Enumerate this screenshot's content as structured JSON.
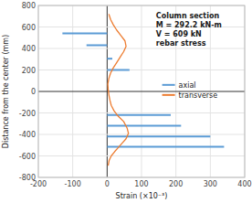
{
  "chart_data": {
    "type": "bar",
    "orientation": "horizontal",
    "xlabel": "Strain (×10⁻³)",
    "ylabel": "Distance from the center (mm)",
    "annotation": [
      "Column section",
      "M = 292.2 kN-m",
      "V = 609 kN",
      "rebar stress"
    ],
    "xlim": [
      -200,
      400
    ],
    "ylim": [
      -800,
      800
    ],
    "xticks": [
      -200,
      -100,
      0,
      100,
      200,
      300,
      400
    ],
    "yticks": [
      -800,
      -600,
      -400,
      -200,
      0,
      200,
      400,
      600,
      800
    ],
    "grid": true,
    "legend": "right",
    "series": [
      {
        "name": "axial",
        "type": "bar",
        "color": "#5b9bd5",
        "y": [
          540,
          430,
          305,
          200,
          0,
          -220,
          -320,
          -420,
          -515
        ],
        "values": [
          -130,
          -60,
          15,
          65,
          0,
          185,
          215,
          300,
          340
        ]
      },
      {
        "name": "transverse",
        "type": "line",
        "color": "#ed7d31",
        "y": [
          720,
          670,
          620,
          570,
          520,
          470,
          420,
          370,
          320,
          270,
          220,
          170,
          120,
          70,
          20,
          -30,
          -80,
          -130,
          -180,
          -230,
          -280,
          -340,
          -390,
          -440,
          -480,
          -520,
          -560,
          -600,
          -640,
          -690
        ],
        "values": [
          5,
          10,
          18,
          28,
          40,
          52,
          55,
          48,
          38,
          28,
          18,
          10,
          5,
          2,
          3,
          5,
          8,
          12,
          20,
          32,
          48,
          58,
          62,
          55,
          44,
          33,
          22,
          12,
          6,
          3
        ]
      }
    ]
  }
}
